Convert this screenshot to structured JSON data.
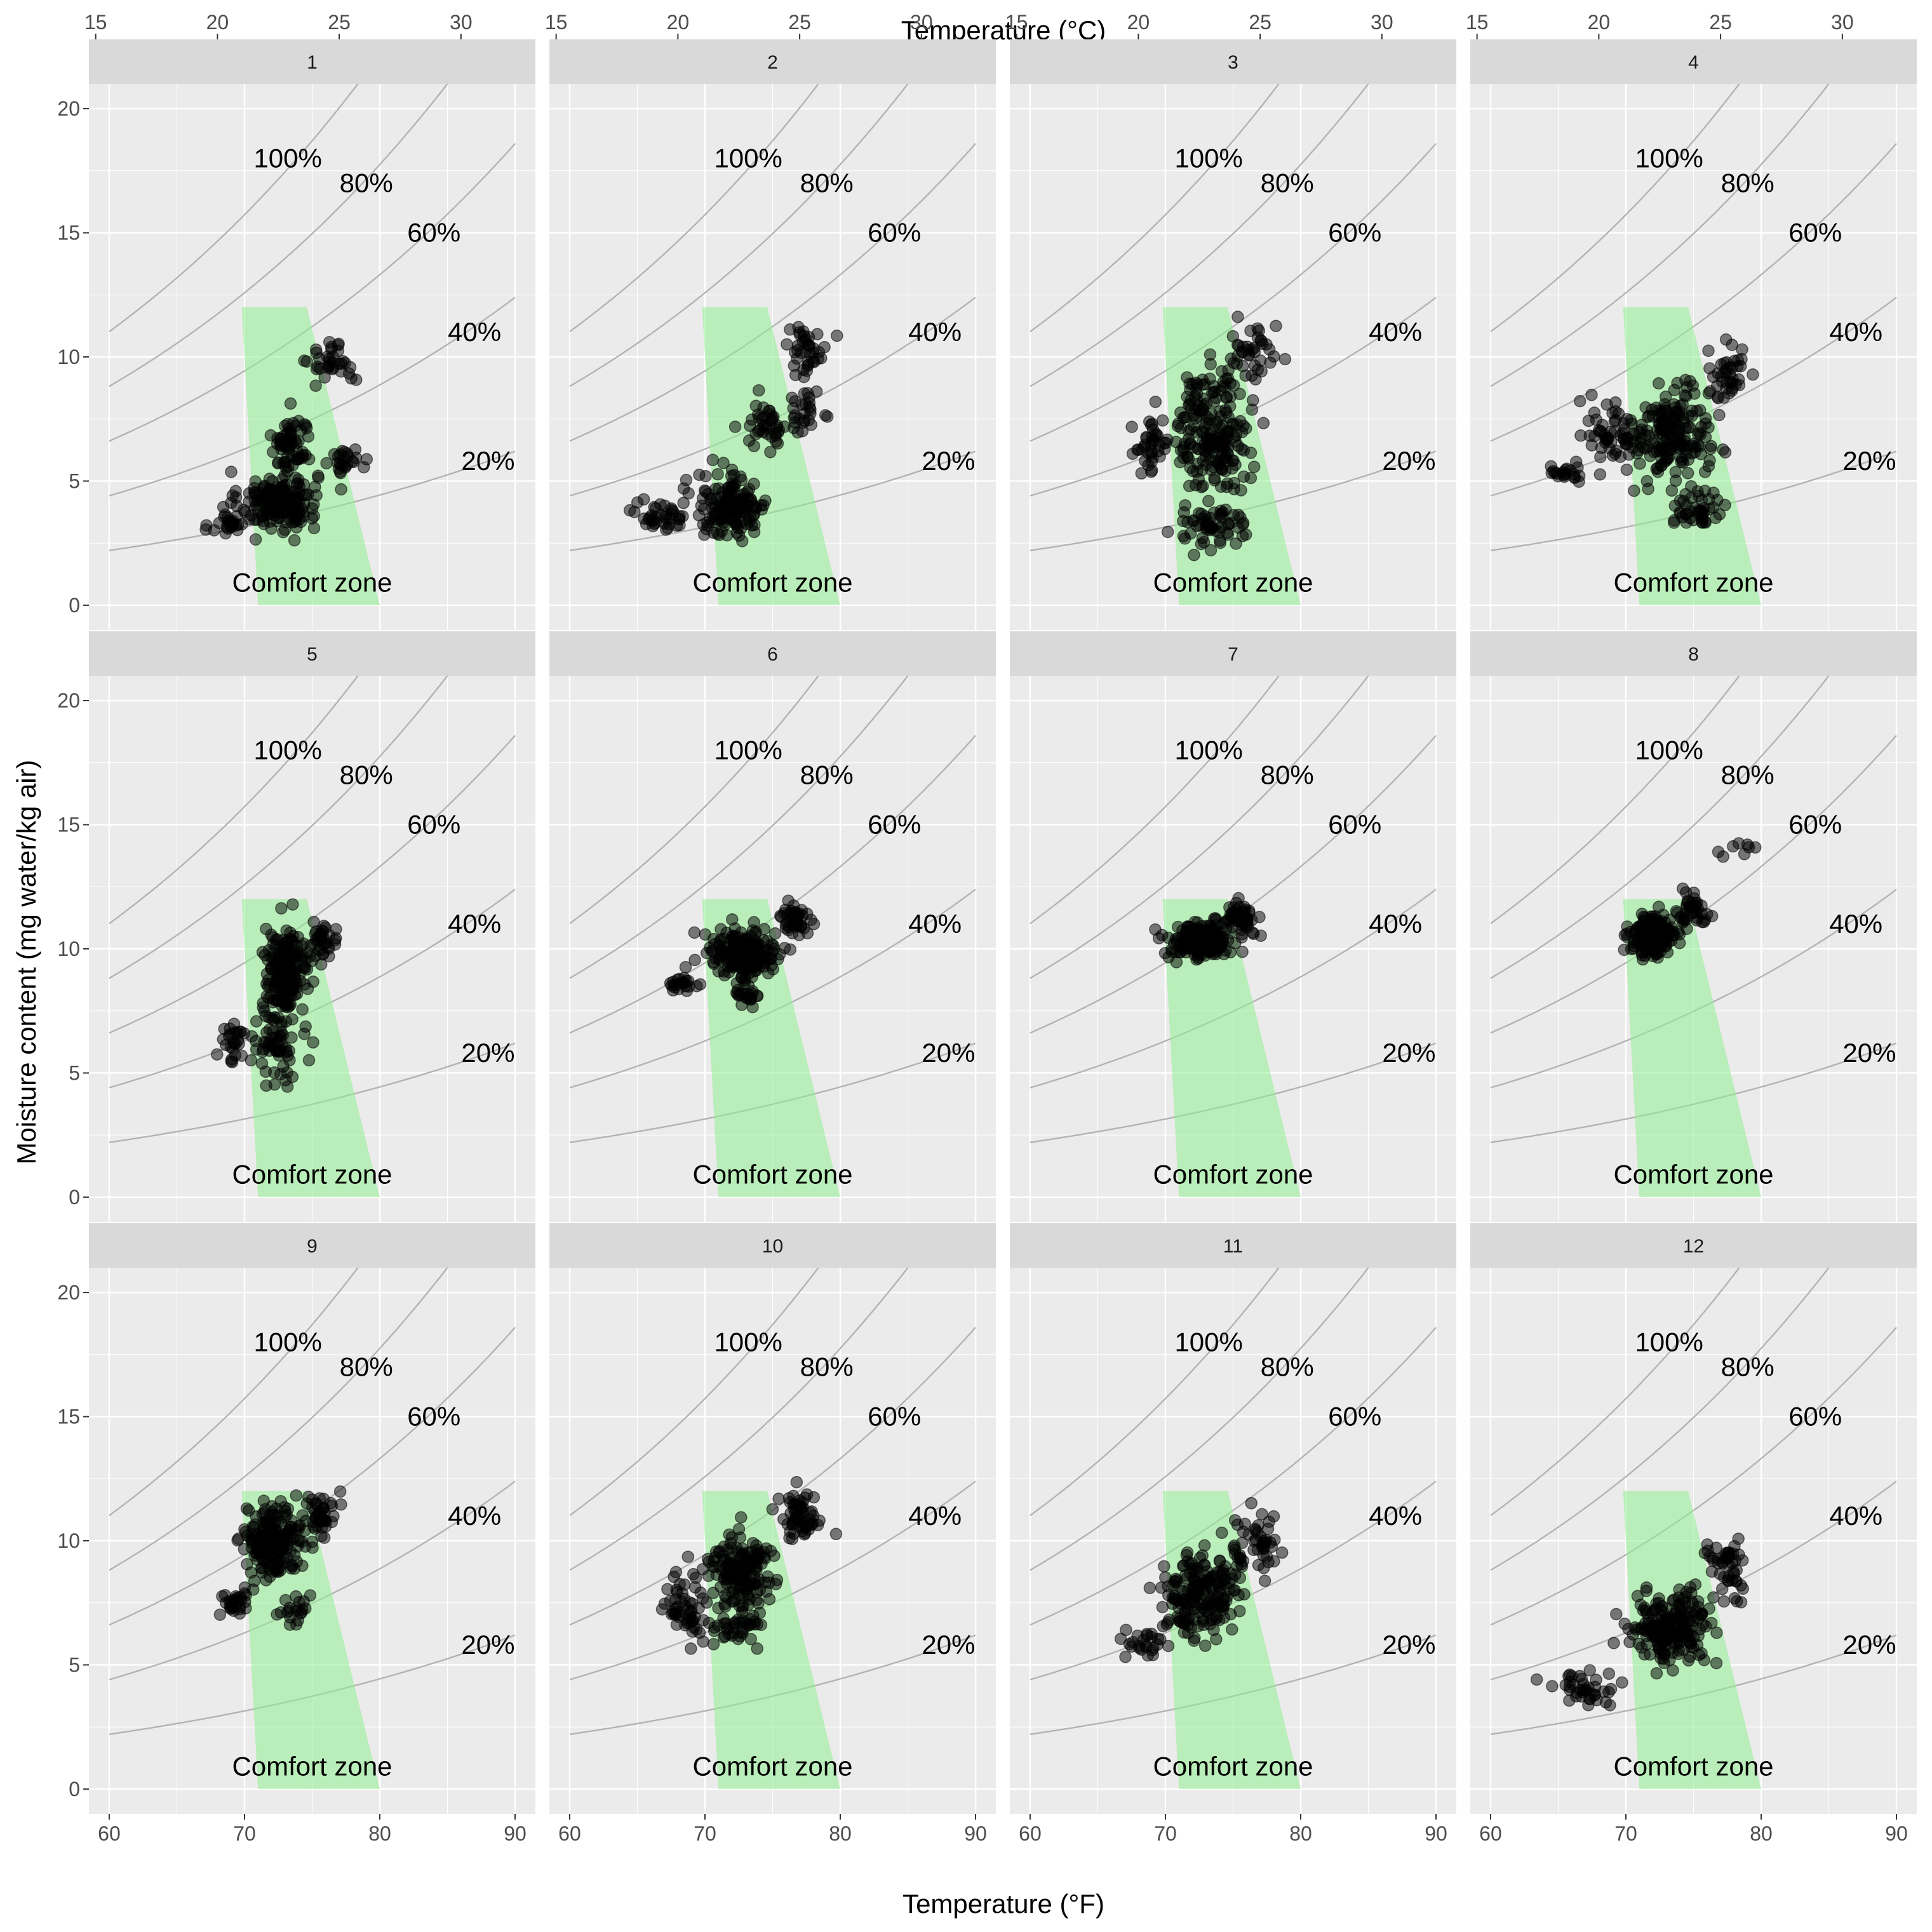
{
  "chart_data": {
    "type": "scatter",
    "title": "",
    "xlabel_top": "Temperature (°C)",
    "xlabel_bottom": "Temperature (°F)",
    "ylabel": "Moisture content (mg water/kg air)",
    "xlim": [
      58.5,
      91.5
    ],
    "ylim": [
      -1,
      21
    ],
    "x_ticks": [
      60,
      70,
      80,
      90
    ],
    "x_tick_labels": [
      "60",
      "70",
      "80",
      "90"
    ],
    "x_minor_ticks": [
      65,
      75,
      85
    ],
    "x2_ticks_c": [
      15,
      20,
      25,
      30
    ],
    "x2_tick_labels": [
      "15",
      "20",
      "25",
      "30"
    ],
    "y_ticks": [
      0,
      5,
      10,
      15,
      20
    ],
    "y_tick_labels": [
      "0",
      "5",
      "10",
      "15",
      "20"
    ],
    "grid": true,
    "legend": "none",
    "point_color": "#000000",
    "comfort_color": "#90ee90",
    "comfort_zone": {
      "label": "Comfort zone",
      "polygon": [
        [
          69.8,
          12
        ],
        [
          74.6,
          12
        ],
        [
          80,
          0
        ],
        [
          71,
          0
        ]
      ]
    },
    "rh_curves": [
      {
        "label": "100%",
        "rh": 1.0,
        "label_at": [
          73.2,
          18.0
        ]
      },
      {
        "label": "80%",
        "rh": 0.8,
        "label_at": [
          79.0,
          17.0
        ]
      },
      {
        "label": "60%",
        "rh": 0.6,
        "label_at": [
          84.0,
          15.0
        ]
      },
      {
        "label": "40%",
        "rh": 0.4,
        "label_at": [
          87.0,
          11.0
        ]
      },
      {
        "label": "20%",
        "rh": 0.2,
        "label_at": [
          88.0,
          5.8
        ]
      }
    ],
    "panels": [
      {
        "label": "1",
        "clusters": [
          {
            "cx": 72.5,
            "cy": 4.2,
            "sx": 2.4,
            "sy": 1.0,
            "n": 170
          },
          {
            "cx": 73.5,
            "cy": 6.5,
            "sx": 1.2,
            "sy": 1.0,
            "n": 60
          },
          {
            "cx": 76.5,
            "cy": 9.8,
            "sx": 1.4,
            "sy": 0.7,
            "n": 35
          },
          {
            "cx": 77.5,
            "cy": 5.8,
            "sx": 1.0,
            "sy": 0.4,
            "n": 25
          },
          {
            "cx": 69.0,
            "cy": 3.3,
            "sx": 1.2,
            "sy": 0.5,
            "n": 25
          }
        ]
      },
      {
        "label": "2",
        "clusters": [
          {
            "cx": 72.0,
            "cy": 4.0,
            "sx": 2.2,
            "sy": 1.1,
            "n": 150
          },
          {
            "cx": 67.0,
            "cy": 3.6,
            "sx": 1.8,
            "sy": 0.5,
            "n": 40
          },
          {
            "cx": 74.5,
            "cy": 7.2,
            "sx": 1.3,
            "sy": 0.8,
            "n": 40
          },
          {
            "cx": 77.5,
            "cy": 10.3,
            "sx": 1.3,
            "sy": 0.9,
            "n": 40
          },
          {
            "cx": 77.5,
            "cy": 7.8,
            "sx": 1.4,
            "sy": 0.7,
            "n": 25
          }
        ]
      },
      {
        "label": "3",
        "clusters": [
          {
            "cx": 73.5,
            "cy": 7.0,
            "sx": 2.2,
            "sy": 2.0,
            "n": 200
          },
          {
            "cx": 73.5,
            "cy": 3.2,
            "sx": 2.4,
            "sy": 0.7,
            "n": 60
          },
          {
            "cx": 69.0,
            "cy": 6.5,
            "sx": 1.2,
            "sy": 1.0,
            "n": 40
          },
          {
            "cx": 76.5,
            "cy": 10.0,
            "sx": 1.5,
            "sy": 1.1,
            "n": 40
          }
        ]
      },
      {
        "label": "4",
        "clusters": [
          {
            "cx": 73.5,
            "cy": 6.8,
            "sx": 2.2,
            "sy": 1.6,
            "n": 180
          },
          {
            "cx": 69.0,
            "cy": 7.0,
            "sx": 1.8,
            "sy": 1.2,
            "n": 60
          },
          {
            "cx": 75.5,
            "cy": 3.8,
            "sx": 1.6,
            "sy": 0.5,
            "n": 40
          },
          {
            "cx": 77.5,
            "cy": 9.3,
            "sx": 1.2,
            "sy": 1.0,
            "n": 40
          },
          {
            "cx": 65.5,
            "cy": 5.3,
            "sx": 1.2,
            "sy": 0.3,
            "n": 20
          }
        ]
      },
      {
        "label": "5",
        "clusters": [
          {
            "cx": 73.0,
            "cy": 9.0,
            "sx": 1.4,
            "sy": 1.4,
            "n": 180
          },
          {
            "cx": 72.5,
            "cy": 6.0,
            "sx": 1.4,
            "sy": 1.0,
            "n": 60
          },
          {
            "cx": 75.5,
            "cy": 10.2,
            "sx": 1.2,
            "sy": 0.8,
            "n": 40
          },
          {
            "cx": 69.2,
            "cy": 6.3,
            "sx": 0.9,
            "sy": 0.7,
            "n": 25
          }
        ]
      },
      {
        "label": "6",
        "clusters": [
          {
            "cx": 72.8,
            "cy": 9.8,
            "sx": 2.2,
            "sy": 0.9,
            "n": 200
          },
          {
            "cx": 76.5,
            "cy": 11.2,
            "sx": 1.1,
            "sy": 0.6,
            "n": 40
          },
          {
            "cx": 68.5,
            "cy": 8.5,
            "sx": 1.0,
            "sy": 0.3,
            "n": 20
          },
          {
            "cx": 73.0,
            "cy": 8.0,
            "sx": 0.9,
            "sy": 0.4,
            "n": 20
          }
        ]
      },
      {
        "label": "7",
        "clusters": [
          {
            "cx": 72.5,
            "cy": 10.3,
            "sx": 2.0,
            "sy": 0.6,
            "n": 180
          },
          {
            "cx": 75.5,
            "cy": 11.2,
            "sx": 1.2,
            "sy": 0.5,
            "n": 60
          }
        ]
      },
      {
        "label": "8",
        "clusters": [
          {
            "cx": 72.0,
            "cy": 10.5,
            "sx": 1.4,
            "sy": 0.7,
            "n": 170
          },
          {
            "cx": 75.0,
            "cy": 11.5,
            "sx": 1.0,
            "sy": 0.6,
            "n": 40
          },
          {
            "cx": 78.5,
            "cy": 14.1,
            "sx": 1.2,
            "sy": 0.3,
            "n": 8
          }
        ]
      },
      {
        "label": "9",
        "clusters": [
          {
            "cx": 72.0,
            "cy": 10.0,
            "sx": 1.6,
            "sy": 1.1,
            "n": 200
          },
          {
            "cx": 75.5,
            "cy": 11.0,
            "sx": 1.2,
            "sy": 0.8,
            "n": 50
          },
          {
            "cx": 69.5,
            "cy": 7.5,
            "sx": 1.0,
            "sy": 0.5,
            "n": 30
          },
          {
            "cx": 73.5,
            "cy": 7.3,
            "sx": 1.2,
            "sy": 0.5,
            "n": 20
          }
        ]
      },
      {
        "label": "10",
        "clusters": [
          {
            "cx": 72.5,
            "cy": 8.8,
            "sx": 1.8,
            "sy": 1.3,
            "n": 160
          },
          {
            "cx": 68.8,
            "cy": 7.5,
            "sx": 1.4,
            "sy": 1.2,
            "n": 60
          },
          {
            "cx": 77.0,
            "cy": 11.0,
            "sx": 1.2,
            "sy": 0.9,
            "n": 60
          },
          {
            "cx": 72.5,
            "cy": 6.5,
            "sx": 1.6,
            "sy": 0.6,
            "n": 40
          }
        ]
      },
      {
        "label": "11",
        "clusters": [
          {
            "cx": 72.5,
            "cy": 7.8,
            "sx": 2.2,
            "sy": 1.4,
            "n": 190
          },
          {
            "cx": 76.5,
            "cy": 10.0,
            "sx": 1.5,
            "sy": 1.1,
            "n": 50
          },
          {
            "cx": 68.5,
            "cy": 5.8,
            "sx": 1.2,
            "sy": 0.5,
            "n": 25
          }
        ]
      },
      {
        "label": "12",
        "clusters": [
          {
            "cx": 73.5,
            "cy": 6.5,
            "sx": 2.5,
            "sy": 1.1,
            "n": 200
          },
          {
            "cx": 77.5,
            "cy": 9.0,
            "sx": 1.3,
            "sy": 1.0,
            "n": 50
          },
          {
            "cx": 67.0,
            "cy": 4.0,
            "sx": 2.4,
            "sy": 0.5,
            "n": 40
          }
        ]
      }
    ]
  }
}
